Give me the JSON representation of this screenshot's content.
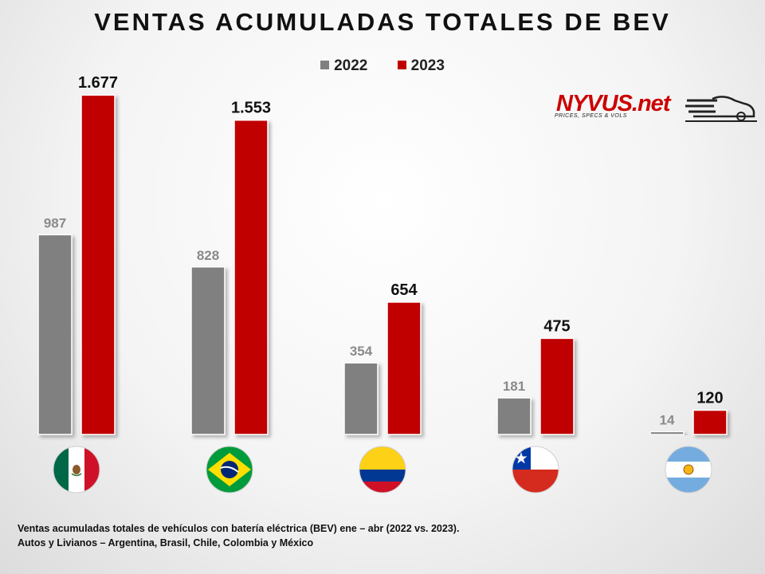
{
  "chart_data": {
    "type": "bar",
    "title": "VENTAS ACUMULADAS TOTALES DE BEV",
    "categories": [
      "México",
      "Brasil",
      "Colombia",
      "Chile",
      "Argentina"
    ],
    "series": [
      {
        "name": "2022",
        "color": "#808080",
        "values": [
          987,
          828,
          354,
          181,
          14
        ],
        "labels": [
          "987",
          "828",
          "354",
          "181",
          "14"
        ]
      },
      {
        "name": "2023",
        "color": "#c00000",
        "values": [
          1677,
          1553,
          654,
          475,
          120
        ],
        "labels": [
          "1.677",
          "1.553",
          "654",
          "475",
          "120"
        ]
      }
    ],
    "ylim": [
      0,
      1800
    ],
    "xlabel": "",
    "ylabel": "",
    "grid": false,
    "legend_position": "top-center",
    "category_icons": [
      "mexico-flag-icon",
      "brazil-flag-icon",
      "colombia-flag-icon",
      "chile-flag-icon",
      "argentina-flag-icon"
    ]
  },
  "logo": {
    "word": "NYVUS.net",
    "tagline": "PRICES, SPECS & VOLS"
  },
  "footnote": {
    "line1": "Ventas acumuladas totales de vehículos con batería eléctrica (BEV) ene – abr (2022 vs. 2023).",
    "line2": "Autos y Livianos – Argentina, Brasil, Chile, Colombia y México"
  }
}
